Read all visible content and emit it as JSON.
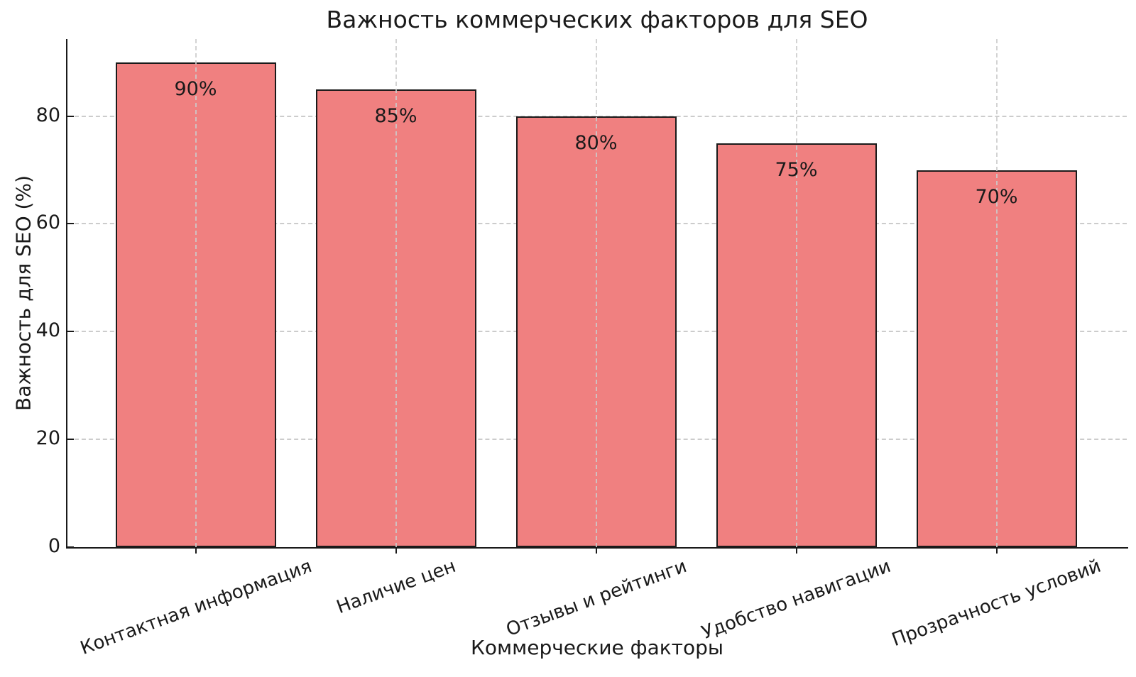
{
  "chart_data": {
    "type": "bar",
    "title": "Важность коммерческих факторов для SEO",
    "xlabel": "Коммерческие факторы",
    "ylabel": "Важность для SEO (%)",
    "categories": [
      "Контактная информация",
      "Наличие цен",
      "Отзывы и рейтинги",
      "Удобство навигации",
      "Прозрачность условий"
    ],
    "values": [
      90,
      85,
      80,
      75,
      70
    ],
    "bar_labels": [
      "90%",
      "85%",
      "80%",
      "75%",
      "70%"
    ],
    "yticks": [
      0,
      20,
      40,
      60,
      80
    ],
    "ylim": [
      0,
      94.3
    ],
    "grid": "dashed, horizontal and vertical, vertical lines drawn over bars",
    "legend": "none",
    "colors": {
      "bar_fill": "#F08080",
      "bar_edge": "#1A1A1A",
      "grid": "#CCCCCC",
      "text": "#1A1A1A",
      "background": "#FFFFFF"
    }
  }
}
